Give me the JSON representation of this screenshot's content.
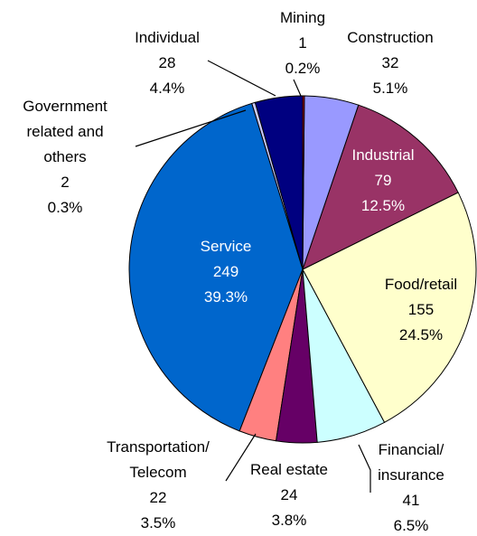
{
  "chart_data": {
    "type": "pie",
    "categories": [
      "Mining",
      "Construction",
      "Industrial",
      "Food/retail",
      "Financial/\ninsurance",
      "Real estate",
      "Transportation/\nTelecom",
      "Service",
      "Government\nrelated and\nothers",
      "Individual"
    ],
    "values": [
      1,
      32,
      79,
      155,
      41,
      24,
      22,
      249,
      2,
      28
    ],
    "percent_labels": [
      "0.2%",
      "5.1%",
      "12.5%",
      "24.5%",
      "6.5%",
      "3.8%",
      "3.5%",
      "39.3%",
      "0.3%",
      "4.4%"
    ],
    "colors": [
      "#cc0000",
      "#9999ff",
      "#993366",
      "#ffffcc",
      "#ccffff",
      "#660066",
      "#ff8080",
      "#0066cc",
      "#ccccff",
      "#000080"
    ],
    "label_colors": [
      "#000",
      "#000",
      "#fff",
      "#000",
      "#000",
      "#000",
      "#000",
      "#fff",
      "#000",
      "#000"
    ]
  }
}
